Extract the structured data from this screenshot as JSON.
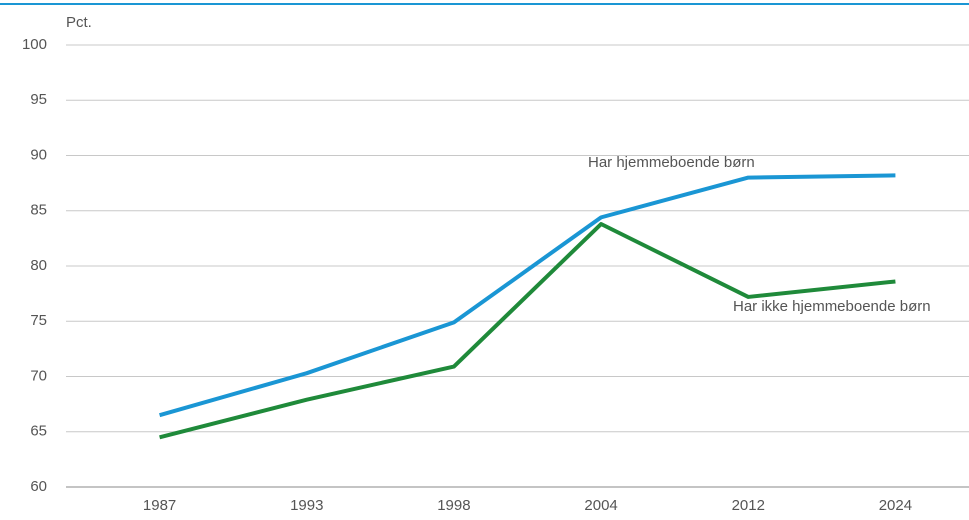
{
  "chart_data": {
    "type": "line",
    "y_label": "Pct.",
    "categories": [
      "1987",
      "1993",
      "1998",
      "2004",
      "2012",
      "2024"
    ],
    "series": [
      {
        "name": "Har hjemmeboende børn",
        "color": "#1a96d4",
        "values": [
          66.5,
          70.3,
          74.9,
          84.4,
          88.0,
          88.2
        ]
      },
      {
        "name": "Har ikke hjemmeboende børn",
        "color": "#1f8a3a",
        "values": [
          64.5,
          67.9,
          70.9,
          83.8,
          77.2,
          78.6
        ]
      }
    ],
    "ylim": [
      60,
      100
    ],
    "yticks": [
      60,
      65,
      70,
      75,
      80,
      85,
      90,
      95,
      100
    ],
    "grid": true
  }
}
